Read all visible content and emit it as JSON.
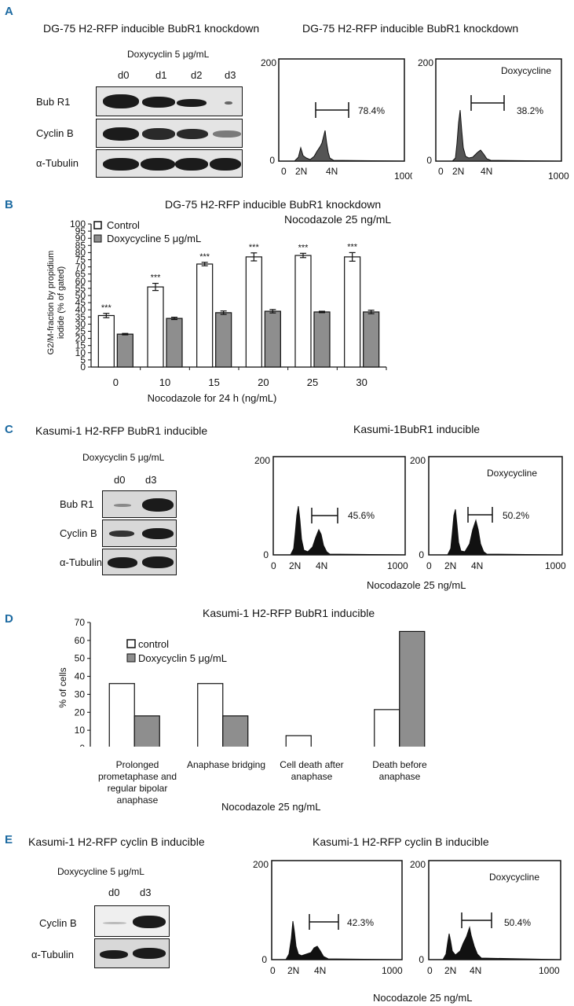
{
  "panelA": {
    "label": "A",
    "blot_title": "DG-75 H2-RFP inducible BubR1 knockdown",
    "flow_title": "DG-75 H2-RFP inducible BubR1 knockdown",
    "treatment": "Doxycyclin 5 μg/mL",
    "lanes": [
      "d0",
      "d1",
      "d2",
      "d3"
    ],
    "rows": [
      "Bub R1",
      "Cyclin B",
      "α-Tubulin"
    ],
    "hist1": {
      "ymax": "200",
      "y0": "0",
      "x0": "0",
      "xmax": "1000",
      "n2": "2N",
      "n4": "4N",
      "pct": "78.4%",
      "tag": ""
    },
    "hist2": {
      "ymax": "200",
      "y0": "0",
      "x0": "0",
      "xmax": "1000",
      "n2": "2N",
      "n4": "4N",
      "pct": "38.2%",
      "tag": "Doxycycline"
    }
  },
  "panelB": {
    "label": "B",
    "title": "DG-75 H2-RFP inducible BubR1 knockdown",
    "subtitle": "Nocodazole 25 ng/mL",
    "ylabel_line1": "G2/M-fraction by propidium",
    "ylabel_line2": "iodide (% of gated)",
    "xlabel": "Nocodazole for 24 h (ng/mL)",
    "legend": [
      "Control",
      "Doxycycline 5 μg/mL"
    ],
    "significance": "***"
  },
  "panelC": {
    "label": "C",
    "blot_title": "Kasumi-1 H2-RFP BubR1 inducible",
    "flow_title": "Kasumi-1BubR1 inducible",
    "treatment": "Doxycyclin 5 μg/mL",
    "lanes": [
      "d0",
      "d3"
    ],
    "rows": [
      "Bub R1",
      "Cyclin B",
      "α-Tubulin"
    ],
    "hist1": {
      "ymax": "200",
      "y0": "0",
      "x0": "0",
      "xmax": "1000",
      "n2": "2N",
      "n4": "4N",
      "pct": "45.6%",
      "tag": ""
    },
    "hist2": {
      "ymax": "200",
      "y0": "0",
      "x0": "0",
      "xmax": "1000",
      "n2": "2N",
      "n4": "4N",
      "pct": "50.2%",
      "tag": "Doxycycline"
    },
    "footer": "Nocodazole 25 ng/mL"
  },
  "panelD": {
    "label": "D",
    "title": "Kasumi-1 H2-RFP BubR1 inducible",
    "ylabel": "% of cells",
    "legend": [
      "control",
      "Doxycyclin 5 μg/mL"
    ],
    "category_lines": [
      [
        "Prolonged",
        "prometaphase and",
        "regular bipolar",
        "anaphase"
      ],
      [
        "Anaphase bridging"
      ],
      [
        "Cell death after",
        "anaphase"
      ],
      [
        "Death before",
        "anaphase"
      ]
    ],
    "footer": "Nocodazole 25 ng/mL"
  },
  "panelE": {
    "label": "E",
    "blot_title": "Kasumi-1 H2-RFP cyclin B inducible",
    "flow_title": "Kasumi-1 H2-RFP cyclin B inducible",
    "treatment": "Doxycycline 5 μg/mL",
    "lanes": [
      "d0",
      "d3"
    ],
    "rows": [
      "Cyclin B",
      "α-Tubulin"
    ],
    "hist1": {
      "ymax": "200",
      "y0": "0",
      "x0": "0",
      "xmax": "1000",
      "n2": "2N",
      "n4": "4N",
      "pct": "42.3%",
      "tag": ""
    },
    "hist2": {
      "ymax": "200",
      "y0": "0",
      "x0": "0",
      "xmax": "1000",
      "n2": "2N",
      "n4": "4N",
      "pct": "50.4%",
      "tag": "Doxycycline"
    },
    "footer": "Nocodazole 25 ng/mL"
  },
  "chart_data": [
    {
      "id": "B",
      "type": "bar",
      "title": "DG-75 H2-RFP inducible BubR1 knockdown",
      "xlabel": "Nocodazole for 24 h (ng/mL)",
      "ylabel": "G2/M-fraction by propidium iodide (% of gated)",
      "categories": [
        "0",
        "10",
        "15",
        "20",
        "25",
        "30"
      ],
      "series": [
        {
          "name": "Control",
          "values": [
            36,
            56,
            72,
            77,
            78,
            77
          ],
          "errors": [
            1.5,
            2.5,
            1.2,
            2.8,
            1.5,
            3
          ],
          "color": "#ffffff"
        },
        {
          "name": "Doxycycline 5 μg/mL",
          "values": [
            23,
            34,
            38,
            39,
            38.5,
            38.5
          ],
          "errors": [
            0.5,
            0.8,
            1.2,
            1.2,
            0.5,
            1.2
          ],
          "color": "#8e8e8e"
        }
      ],
      "ylim": [
        0,
        100
      ],
      "yticks": [
        "0",
        "5",
        "10",
        "15",
        "20",
        "25",
        "30",
        "35",
        "40",
        "45",
        "50",
        "55",
        "60",
        "65",
        "70",
        "75",
        "80",
        "85",
        "90",
        "95",
        "100"
      ],
      "annotations": [
        "***",
        "***",
        "***",
        "***",
        "***",
        "***"
      ]
    },
    {
      "id": "D",
      "type": "bar",
      "title": "Kasumi-1 H2-RFP BubR1 inducible",
      "xlabel": "Nocodazole 25 ng/mL",
      "ylabel": "% of cells",
      "categories": [
        "Prolonged prometaphase and regular bipolar anaphase",
        "Anaphase bridging",
        "Cell death after anaphase",
        "Death before anaphase"
      ],
      "series": [
        {
          "name": "control",
          "values": [
            36,
            36,
            7,
            21.5
          ],
          "color": "#ffffff"
        },
        {
          "name": "Doxycyclin 5 μg/mL",
          "values": [
            18,
            18,
            0,
            65
          ],
          "color": "#8e8e8e"
        }
      ],
      "ylim": [
        0,
        70
      ],
      "yticks": [
        "0",
        "10",
        "20",
        "30",
        "40",
        "50",
        "60",
        "70"
      ]
    },
    {
      "id": "flow-histograms",
      "type": "area",
      "xlim": [
        0,
        1000
      ],
      "ylim": [
        0,
        200
      ],
      "note": "DNA content histograms with G2/M gate",
      "histograms": [
        {
          "panel": "A",
          "condition": "control",
          "gate_pct": "78.4%"
        },
        {
          "panel": "A",
          "condition": "Doxycycline",
          "gate_pct": "38.2%"
        },
        {
          "panel": "C",
          "condition": "control",
          "gate_pct": "45.6%"
        },
        {
          "panel": "C",
          "condition": "Doxycycline",
          "gate_pct": "50.2%"
        },
        {
          "panel": "E",
          "condition": "control",
          "gate_pct": "42.3%"
        },
        {
          "panel": "E",
          "condition": "Doxycycline",
          "gate_pct": "50.4%"
        }
      ]
    }
  ]
}
